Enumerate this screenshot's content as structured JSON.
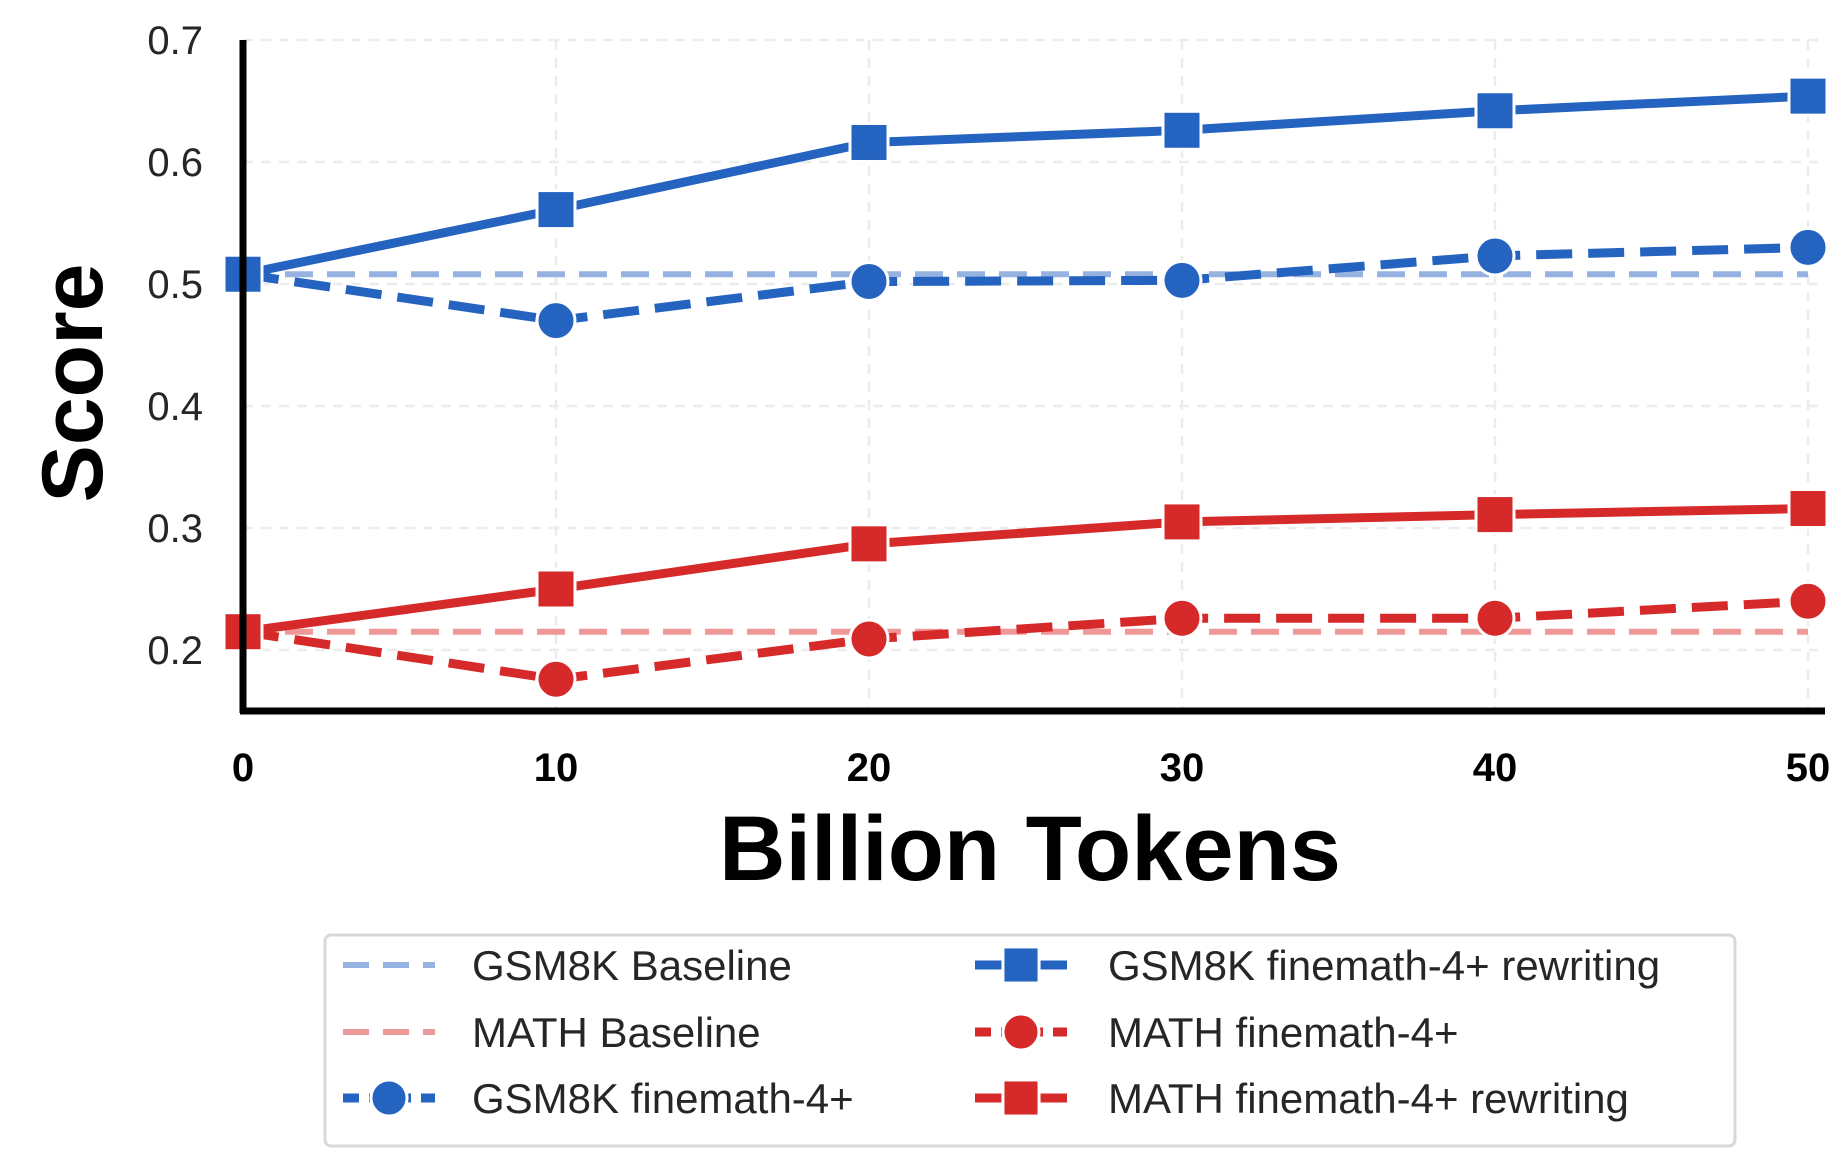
{
  "chart_data": {
    "type": "line",
    "xlabel": "Billion Tokens",
    "ylabel": "Score",
    "xlim": [
      0,
      50
    ],
    "ylim": [
      0.15,
      0.7
    ],
    "xticks": [
      0,
      10,
      20,
      30,
      40,
      50
    ],
    "xtick_labels": [
      "0",
      "10",
      "20",
      "30",
      "40",
      "50"
    ],
    "yticks": [
      0.2,
      0.3,
      0.4,
      0.5,
      0.6,
      0.7
    ],
    "ytick_labels": [
      "0.2",
      "0.3",
      "0.4",
      "0.5",
      "0.6",
      "0.7"
    ],
    "grid": true,
    "legend_position": "bottom",
    "colors": {
      "gsm8k": "#2563c0",
      "gsm8k_baseline": "#95b2e0",
      "math": "#d62a2a",
      "math_baseline": "#ee9898"
    },
    "series": [
      {
        "name": "GSM8K Baseline",
        "x": [
          0,
          50
        ],
        "values": [
          0.508,
          0.508
        ],
        "style": "dashed",
        "marker": "none",
        "color_key": "gsm8k_baseline"
      },
      {
        "name": "MATH Baseline",
        "x": [
          0,
          50
        ],
        "values": [
          0.215,
          0.215
        ],
        "style": "dashed",
        "marker": "none",
        "color_key": "math_baseline"
      },
      {
        "name": "GSM8K finemath-4+",
        "x": [
          0,
          10,
          20,
          30,
          40,
          50
        ],
        "values": [
          0.508,
          0.47,
          0.502,
          0.503,
          0.523,
          0.53
        ],
        "style": "dashed",
        "marker": "circle",
        "color_key": "gsm8k"
      },
      {
        "name": "GSM8K finemath-4+ rewriting",
        "x": [
          0,
          10,
          20,
          30,
          40,
          50
        ],
        "values": [
          0.508,
          0.561,
          0.616,
          0.626,
          0.642,
          0.654
        ],
        "style": "solid",
        "marker": "square",
        "color_key": "gsm8k"
      },
      {
        "name": "MATH finemath-4+",
        "x": [
          0,
          10,
          20,
          30,
          40,
          50
        ],
        "values": [
          0.215,
          0.176,
          0.209,
          0.226,
          0.226,
          0.24
        ],
        "style": "dashed",
        "marker": "circle",
        "color_key": "math"
      },
      {
        "name": "MATH finemath-4+ rewriting",
        "x": [
          0,
          10,
          20,
          30,
          40,
          50
        ],
        "values": [
          0.215,
          0.25,
          0.287,
          0.305,
          0.311,
          0.316
        ],
        "style": "solid",
        "marker": "square",
        "color_key": "math"
      }
    ]
  }
}
